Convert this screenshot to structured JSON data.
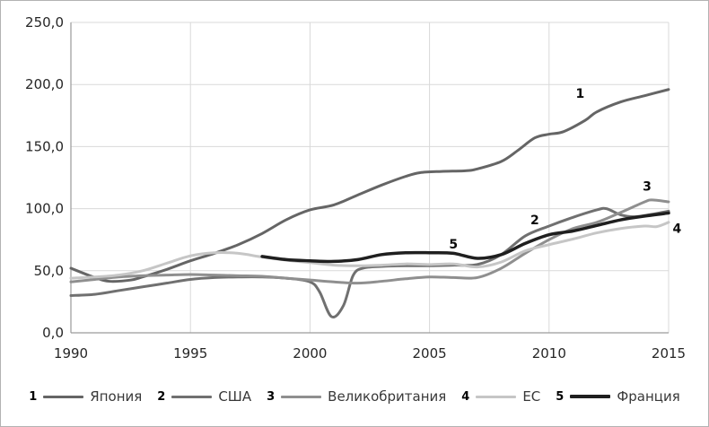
{
  "chart_data": {
    "type": "line",
    "title": "",
    "x_range": [
      1990,
      2015
    ],
    "y_range": [
      0,
      250
    ],
    "grid": true,
    "legend_position": "bottom",
    "x_ticks": {
      "values": [
        1990,
        1995,
        2000,
        2005,
        2010,
        2015
      ],
      "labels": [
        "1990",
        "1995",
        "2000",
        "2005",
        "2010",
        "2015"
      ]
    },
    "y_ticks": {
      "values": [
        0,
        50,
        100,
        150,
        200,
        250
      ],
      "labels": [
        "0,0",
        "50,0",
        "100,0",
        "150,0",
        "200,0",
        "250,0"
      ]
    },
    "colors": {
      "grid": "#d9d9d9",
      "axis": "#9a9a9a",
      "tick_text": "#262626",
      "annotation_text": "#0a0a0a"
    },
    "series": [
      {
        "id": "japan",
        "number": "1",
        "name": "Япония",
        "color": "#656565",
        "width": 3,
        "points": [
          [
            1990,
            52
          ],
          [
            1991,
            44.5
          ],
          [
            1991.6,
            41.5
          ],
          [
            1992.5,
            42.5
          ],
          [
            1993,
            45
          ],
          [
            1994,
            51
          ],
          [
            1995,
            58
          ],
          [
            1996,
            64
          ],
          [
            1997,
            71
          ],
          [
            1998,
            80
          ],
          [
            1999,
            91
          ],
          [
            2000,
            99
          ],
          [
            2001,
            103
          ],
          [
            2002,
            111
          ],
          [
            2003,
            119
          ],
          [
            2004,
            126
          ],
          [
            2004.6,
            129
          ],
          [
            2005.5,
            130
          ],
          [
            2006.5,
            130.5
          ],
          [
            2007,
            132
          ],
          [
            2008,
            138
          ],
          [
            2008.7,
            147
          ],
          [
            2009.4,
            157
          ],
          [
            2010,
            160
          ],
          [
            2010.6,
            162
          ],
          [
            2011.5,
            171
          ],
          [
            2012,
            178
          ],
          [
            2013,
            186
          ],
          [
            2014,
            191
          ],
          [
            2015,
            196
          ]
        ]
      },
      {
        "id": "usa",
        "number": "2",
        "name": "США",
        "color": "#707070",
        "width": 3,
        "points": [
          [
            1990,
            30
          ],
          [
            1991,
            31
          ],
          [
            1992,
            34
          ],
          [
            1993,
            37
          ],
          [
            1994,
            40
          ],
          [
            1995,
            43
          ],
          [
            1996,
            44.5
          ],
          [
            1997,
            45
          ],
          [
            1998,
            45
          ],
          [
            1999,
            44
          ],
          [
            2000,
            41
          ],
          [
            2000.4,
            33
          ],
          [
            2000.9,
            13
          ],
          [
            2001.4,
            22
          ],
          [
            2001.8,
            46
          ],
          [
            2002.2,
            52
          ],
          [
            2003,
            53.5
          ],
          [
            2004,
            54
          ],
          [
            2005,
            54
          ],
          [
            2006,
            54.5
          ],
          [
            2007,
            55
          ],
          [
            2008,
            63
          ],
          [
            2009,
            78
          ],
          [
            2010,
            86
          ],
          [
            2011,
            93
          ],
          [
            2012,
            99
          ],
          [
            2012.4,
            100
          ],
          [
            2013,
            95
          ],
          [
            2013.6,
            93.5
          ],
          [
            2014.3,
            95.5
          ],
          [
            2015,
            98
          ]
        ]
      },
      {
        "id": "uk",
        "number": "3",
        "name": "Великобритания",
        "color": "#8f8f8f",
        "width": 3,
        "points": [
          [
            1990,
            41
          ],
          [
            1991,
            43
          ],
          [
            1992,
            45
          ],
          [
            1993,
            46
          ],
          [
            1994,
            46.5
          ],
          [
            1995,
            47
          ],
          [
            1996,
            46.5
          ],
          [
            1997,
            46
          ],
          [
            1998,
            45.5
          ],
          [
            1999,
            44
          ],
          [
            2000,
            42.5
          ],
          [
            2001,
            41
          ],
          [
            2002,
            40
          ],
          [
            2003,
            41.5
          ],
          [
            2004,
            43.5
          ],
          [
            2005,
            45
          ],
          [
            2006,
            44.5
          ],
          [
            2007,
            44.5
          ],
          [
            2008,
            52
          ],
          [
            2009,
            64
          ],
          [
            2010,
            75
          ],
          [
            2011,
            84
          ],
          [
            2012,
            89
          ],
          [
            2013,
            97
          ],
          [
            2014,
            105.5
          ],
          [
            2014.3,
            107
          ],
          [
            2015,
            105.5
          ]
        ]
      },
      {
        "id": "eu",
        "number": "4",
        "name": "ЕС",
        "color": "#c6c6c6",
        "width": 3,
        "points": [
          [
            1990,
            44
          ],
          [
            1991,
            45
          ],
          [
            1992,
            46.5
          ],
          [
            1993,
            50
          ],
          [
            1994,
            56
          ],
          [
            1995,
            62
          ],
          [
            1996,
            64.5
          ],
          [
            1997,
            64
          ],
          [
            1998,
            61
          ],
          [
            1999,
            58.5
          ],
          [
            2000,
            56.5
          ],
          [
            2001,
            54.5
          ],
          [
            2002,
            54
          ],
          [
            2003,
            54.5
          ],
          [
            2004,
            55.5
          ],
          [
            2005,
            55
          ],
          [
            2006,
            55.5
          ],
          [
            2007,
            53
          ],
          [
            2008,
            57
          ],
          [
            2009,
            66
          ],
          [
            2010,
            71
          ],
          [
            2011,
            75.5
          ],
          [
            2012,
            80.5
          ],
          [
            2013,
            84
          ],
          [
            2014,
            86
          ],
          [
            2014.5,
            85.5
          ],
          [
            2015,
            89
          ]
        ]
      },
      {
        "id": "france",
        "number": "5",
        "name": "Франция",
        "color": "#1f1f1f",
        "width": 3.5,
        "points": [
          [
            1998,
            61.5
          ],
          [
            1999,
            59
          ],
          [
            2000,
            58
          ],
          [
            2001,
            57.5
          ],
          [
            2002,
            59
          ],
          [
            2003,
            63
          ],
          [
            2004,
            64.5
          ],
          [
            2005,
            64.5
          ],
          [
            2006,
            64
          ],
          [
            2007,
            60
          ],
          [
            2008,
            63
          ],
          [
            2009,
            72
          ],
          [
            2010,
            79
          ],
          [
            2011,
            82
          ],
          [
            2012,
            86.5
          ],
          [
            2013,
            91
          ],
          [
            2014,
            94
          ],
          [
            2015,
            96.5
          ]
        ]
      }
    ],
    "annotations": [
      {
        "text": "1",
        "year": 2011.3,
        "value": 193
      },
      {
        "text": "2",
        "year": 2009.4,
        "value": 91
      },
      {
        "text": "3",
        "year": 2014.1,
        "value": 118
      },
      {
        "text": "4",
        "year": 2015.35,
        "value": 84
      },
      {
        "text": "5",
        "year": 2006.0,
        "value": 71.5
      }
    ]
  }
}
